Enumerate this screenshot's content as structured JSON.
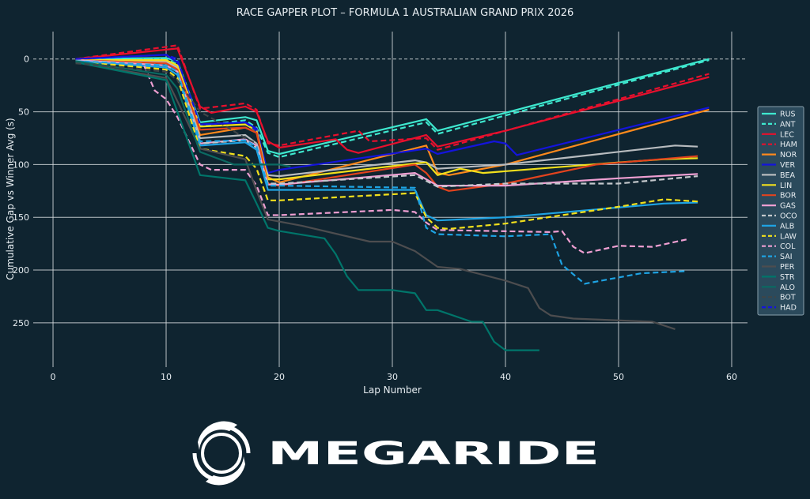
{
  "chart_data": {
    "type": "line",
    "title": "RACE GAPPER PLOT – FORMULA 1 AUSTRALIAN GRAND PRIX 2026",
    "xlabel": "Lap Number",
    "ylabel": "Cumulative Gap vs Winner Avg (s)",
    "xlim": [
      -1.75,
      61.4
    ],
    "ylim": [
      292,
      -26
    ],
    "y_inverted": true,
    "xticks": [
      0,
      10,
      20,
      30,
      40,
      50,
      60
    ],
    "yticks": [
      0,
      50,
      100,
      150,
      200,
      250
    ],
    "grid": true,
    "zero_line": "dashed",
    "legend_position": "right",
    "series": [
      {
        "name": "RUS",
        "color": "#3ee8cf",
        "dash": false,
        "points": [
          [
            2,
            0
          ],
          [
            10,
            -1
          ],
          [
            11,
            2
          ],
          [
            13,
            60
          ],
          [
            17,
            55
          ],
          [
            18,
            58
          ],
          [
            19,
            87
          ],
          [
            20,
            90
          ],
          [
            33,
            57
          ],
          [
            34,
            68
          ],
          [
            58,
            0
          ]
        ]
      },
      {
        "name": "ANT",
        "color": "#3ee8cf",
        "dash": true,
        "points": [
          [
            2,
            0
          ],
          [
            10,
            0
          ],
          [
            11,
            5
          ],
          [
            13,
            63
          ],
          [
            17,
            58
          ],
          [
            18,
            65
          ],
          [
            19,
            89
          ],
          [
            20,
            93
          ],
          [
            33,
            60
          ],
          [
            34,
            71
          ],
          [
            58,
            1
          ]
        ]
      },
      {
        "name": "LEC",
        "color": "#e8102d",
        "dash": false,
        "points": [
          [
            2,
            0
          ],
          [
            11,
            -10
          ],
          [
            13,
            45
          ],
          [
            14,
            51
          ],
          [
            17,
            45
          ],
          [
            18,
            50
          ],
          [
            19,
            78
          ],
          [
            20,
            84
          ],
          [
            25,
            76
          ],
          [
            26,
            86
          ],
          [
            27,
            89
          ],
          [
            33,
            72
          ],
          [
            34,
            83
          ],
          [
            40,
            68
          ],
          [
            58,
            17
          ]
        ]
      },
      {
        "name": "HAM",
        "color": "#e8102d",
        "dash": true,
        "points": [
          [
            2,
            0
          ],
          [
            11,
            -13
          ],
          [
            13,
            47
          ],
          [
            17,
            42
          ],
          [
            18,
            48
          ],
          [
            19,
            80
          ],
          [
            20,
            82
          ],
          [
            27,
            68
          ],
          [
            28,
            78
          ],
          [
            33,
            75
          ],
          [
            34,
            86
          ],
          [
            58,
            14
          ]
        ]
      },
      {
        "name": "NOR",
        "color": "#ff8a1c",
        "dash": false,
        "points": [
          [
            2,
            1
          ],
          [
            10,
            2
          ],
          [
            11,
            8
          ],
          [
            13,
            72
          ],
          [
            17,
            65
          ],
          [
            18,
            70
          ],
          [
            19,
            112
          ],
          [
            20,
            117
          ],
          [
            33,
            82
          ],
          [
            34,
            108
          ],
          [
            35,
            110
          ],
          [
            40,
            100
          ],
          [
            58,
            48
          ]
        ]
      },
      {
        "name": "VER",
        "color": "#1414dc",
        "dash": false,
        "points": [
          [
            2,
            0
          ],
          [
            10,
            -4
          ],
          [
            11,
            3
          ],
          [
            13,
            62
          ],
          [
            17,
            60
          ],
          [
            18,
            66
          ],
          [
            19,
            108
          ],
          [
            20,
            105
          ],
          [
            33,
            85
          ],
          [
            34,
            90
          ],
          [
            39,
            78
          ],
          [
            40,
            80
          ],
          [
            41,
            91
          ],
          [
            58,
            46
          ]
        ]
      },
      {
        "name": "BEA",
        "color": "#b8bcbf",
        "dash": false,
        "points": [
          [
            2,
            1
          ],
          [
            10,
            3
          ],
          [
            11,
            8
          ],
          [
            13,
            75
          ],
          [
            17,
            72
          ],
          [
            18,
            80
          ],
          [
            19,
            110
          ],
          [
            20,
            111
          ],
          [
            32,
            96
          ],
          [
            33,
            98
          ],
          [
            34,
            104
          ],
          [
            40,
            100
          ],
          [
            55,
            82
          ],
          [
            57,
            83
          ]
        ]
      },
      {
        "name": "LIN",
        "color": "#f2e01c",
        "dash": false,
        "points": [
          [
            2,
            1
          ],
          [
            10,
            1
          ],
          [
            11,
            6
          ],
          [
            13,
            64
          ],
          [
            17,
            62
          ],
          [
            18,
            68
          ],
          [
            19,
            114
          ],
          [
            20,
            114
          ],
          [
            32,
            99
          ],
          [
            33,
            98
          ],
          [
            34,
            110
          ],
          [
            36,
            104
          ],
          [
            38,
            108
          ],
          [
            50,
            98
          ],
          [
            54,
            95
          ],
          [
            57,
            94
          ]
        ]
      },
      {
        "name": "BOR",
        "color": "#e2431e",
        "dash": false,
        "points": [
          [
            2,
            1
          ],
          [
            10,
            4
          ],
          [
            11,
            10
          ],
          [
            13,
            67
          ],
          [
            17,
            65
          ],
          [
            18,
            70
          ],
          [
            19,
            118
          ],
          [
            20,
            120
          ],
          [
            32,
            100
          ],
          [
            33,
            108
          ],
          [
            34,
            121
          ],
          [
            35,
            125
          ],
          [
            40,
            118
          ],
          [
            48,
            100
          ],
          [
            57,
            92
          ]
        ]
      },
      {
        "name": "GAS",
        "color": "#ef9fd2",
        "dash": false,
        "points": [
          [
            2,
            1
          ],
          [
            10,
            6
          ],
          [
            11,
            12
          ],
          [
            13,
            80
          ],
          [
            17,
            76
          ],
          [
            18,
            82
          ],
          [
            19,
            119
          ],
          [
            20,
            119
          ],
          [
            32,
            108
          ],
          [
            34,
            120
          ],
          [
            40,
            120
          ],
          [
            50,
            113
          ],
          [
            57,
            109
          ]
        ]
      },
      {
        "name": "OCO",
        "color": "#c4c8cc",
        "dash": true,
        "points": [
          [
            2,
            1
          ],
          [
            10,
            6
          ],
          [
            11,
            12
          ],
          [
            13,
            80
          ],
          [
            17,
            77
          ],
          [
            18,
            84
          ],
          [
            19,
            118
          ],
          [
            20,
            118
          ],
          [
            32,
            110
          ],
          [
            34,
            121
          ],
          [
            40,
            118
          ],
          [
            50,
            118
          ],
          [
            57,
            111
          ]
        ]
      },
      {
        "name": "ALB",
        "color": "#1ea3e3",
        "dash": false,
        "points": [
          [
            2,
            2
          ],
          [
            10,
            8
          ],
          [
            11,
            15
          ],
          [
            13,
            82
          ],
          [
            17,
            79
          ],
          [
            18,
            86
          ],
          [
            19,
            124
          ],
          [
            20,
            124
          ],
          [
            32,
            124
          ],
          [
            33,
            148
          ],
          [
            34,
            153
          ],
          [
            40,
            150
          ],
          [
            54,
            137
          ],
          [
            57,
            136
          ]
        ]
      },
      {
        "name": "LAW",
        "color": "#f2e01c",
        "dash": true,
        "points": [
          [
            2,
            2
          ],
          [
            10,
            10
          ],
          [
            11,
            18
          ],
          [
            13,
            85
          ],
          [
            17,
            92
          ],
          [
            18,
            104
          ],
          [
            19,
            134
          ],
          [
            20,
            134
          ],
          [
            32,
            127
          ],
          [
            33,
            150
          ],
          [
            34,
            160
          ],
          [
            35,
            161
          ],
          [
            40,
            156
          ],
          [
            50,
            140
          ],
          [
            54,
            133
          ],
          [
            57,
            135
          ]
        ]
      },
      {
        "name": "COL",
        "color": "#ef9fd2",
        "dash": true,
        "points": [
          [
            2,
            2
          ],
          [
            8,
            5
          ],
          [
            9,
            30
          ],
          [
            10,
            38
          ],
          [
            11,
            55
          ],
          [
            13,
            100
          ],
          [
            14,
            105
          ],
          [
            17,
            105
          ],
          [
            18,
            120
          ],
          [
            19,
            148
          ],
          [
            20,
            148
          ],
          [
            30,
            143
          ],
          [
            32,
            145
          ],
          [
            33,
            155
          ],
          [
            34,
            162
          ],
          [
            44,
            164
          ],
          [
            45,
            163
          ],
          [
            46,
            178
          ],
          [
            47,
            184
          ],
          [
            50,
            177
          ],
          [
            53,
            178
          ],
          [
            56,
            171
          ]
        ]
      },
      {
        "name": "SAI",
        "color": "#1ea3e3",
        "dash": true,
        "points": [
          [
            2,
            2
          ],
          [
            10,
            6
          ],
          [
            11,
            12
          ],
          [
            13,
            78
          ],
          [
            17,
            77
          ],
          [
            18,
            83
          ],
          [
            19,
            120
          ],
          [
            20,
            120
          ],
          [
            32,
            122
          ],
          [
            33,
            160
          ],
          [
            34,
            166
          ],
          [
            40,
            168
          ],
          [
            44,
            166
          ],
          [
            45,
            195
          ],
          [
            47,
            213
          ],
          [
            50,
            207
          ],
          [
            52,
            203
          ],
          [
            56,
            201
          ]
        ]
      },
      {
        "name": "PER",
        "color": "#4d4d4f",
        "dash": false,
        "points": [
          [
            2,
            3
          ],
          [
            10,
            18
          ],
          [
            11,
            40
          ],
          [
            13,
            85
          ],
          [
            17,
            95
          ],
          [
            18,
            125
          ],
          [
            19,
            152
          ],
          [
            22,
            158
          ],
          [
            28,
            173
          ],
          [
            30,
            173
          ],
          [
            32,
            182
          ],
          [
            34,
            197
          ],
          [
            36,
            199
          ],
          [
            40,
            210
          ],
          [
            42,
            217
          ],
          [
            43,
            236
          ],
          [
            44,
            243
          ],
          [
            46,
            246
          ],
          [
            53,
            249
          ],
          [
            55,
            256
          ]
        ]
      },
      {
        "name": "STR",
        "color": "#00756a",
        "dash": false,
        "points": [
          [
            2,
            3
          ],
          [
            10,
            20
          ],
          [
            11,
            50
          ],
          [
            13,
            110
          ],
          [
            17,
            115
          ],
          [
            18,
            137
          ],
          [
            19,
            160
          ],
          [
            20,
            163
          ],
          [
            24,
            170
          ],
          [
            25,
            185
          ],
          [
            26,
            206
          ],
          [
            27,
            219
          ],
          [
            30,
            219
          ],
          [
            32,
            222
          ],
          [
            33,
            238
          ],
          [
            34,
            238
          ],
          [
            37,
            249
          ],
          [
            38,
            249
          ],
          [
            39,
            268
          ],
          [
            40,
            276
          ],
          [
            43,
            276
          ]
        ]
      },
      {
        "name": "ALO",
        "color": "#0b6a62",
        "dash": false,
        "points": [
          [
            2,
            2
          ],
          [
            10,
            15
          ],
          [
            11,
            28
          ],
          [
            13,
            88
          ],
          [
            16,
            100
          ],
          [
            20,
            100
          ],
          [
            21,
            102
          ]
        ]
      },
      {
        "name": "BOT",
        "color": "#3f4548",
        "dash": true,
        "points": [
          [
            2,
            4
          ],
          [
            10,
            12
          ],
          [
            11,
            20
          ],
          [
            13,
            50
          ],
          [
            15,
            62
          ],
          [
            17,
            75
          ],
          [
            18,
            80
          ]
        ]
      },
      {
        "name": "HAD",
        "color": "#1414dc",
        "dash": true,
        "points": [
          [
            2,
            0
          ],
          [
            10,
            -4
          ],
          [
            11,
            0
          ],
          [
            13,
            62
          ],
          [
            17,
            60
          ],
          [
            18,
            68
          ]
        ]
      }
    ]
  },
  "logo": {
    "text": "MEGARIDE",
    "icon": "swirl-ring-logo"
  },
  "colors": {
    "background": "#0f2430",
    "grid": "#d8dde0",
    "legend_bg": "#2b4a5c"
  }
}
